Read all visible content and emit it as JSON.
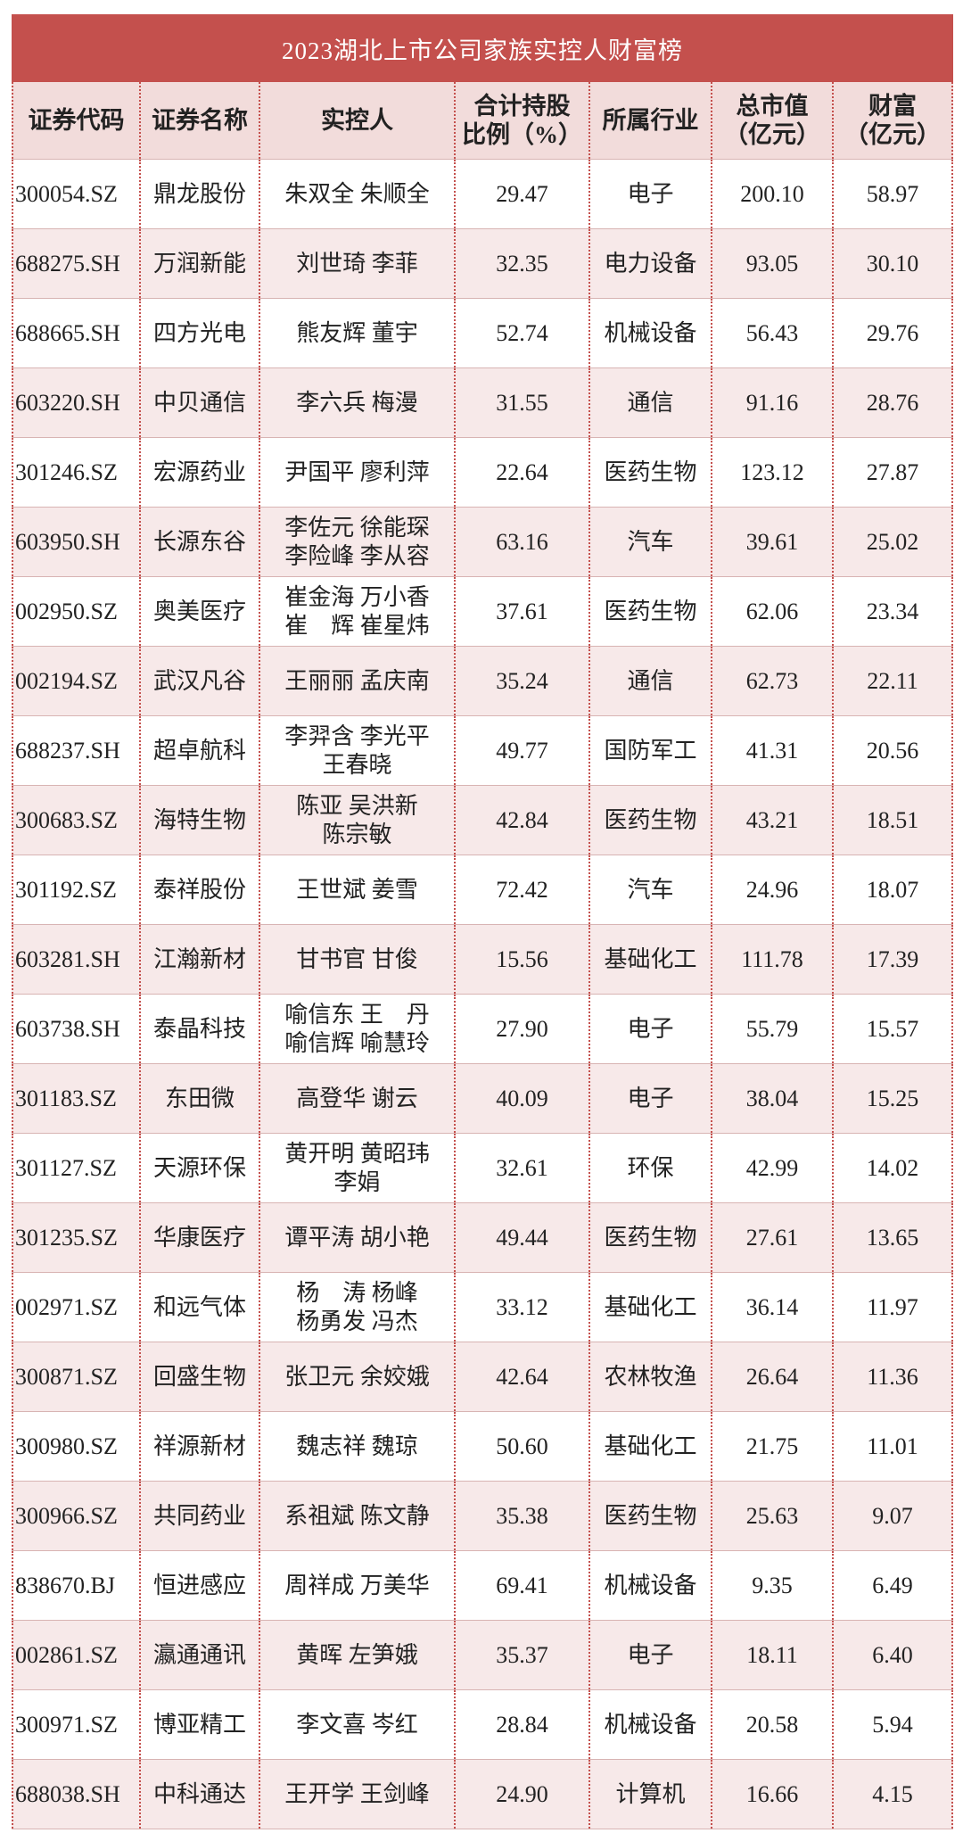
{
  "table": {
    "title": "2023湖北上市公司家族实控人财富榜",
    "header": [
      "证券代码",
      "证券名称",
      "实控人",
      "合计持股\n比例（%）",
      "所属行业",
      "总市值\n（亿元）",
      "财富\n（亿元）"
    ],
    "rows": [
      [
        "300054.SZ",
        "鼎龙股份",
        "朱双全  朱顺全",
        "29.47",
        "电子",
        "200.10",
        "58.97"
      ],
      [
        "688275.SH",
        "万润新能",
        "刘世琦  李菲",
        "32.35",
        "电力设备",
        "93.05",
        "30.10"
      ],
      [
        "688665.SH",
        "四方光电",
        "熊友辉  董宇",
        "52.74",
        "机械设备",
        "56.43",
        "29.76"
      ],
      [
        "603220.SH",
        "中贝通信",
        "李六兵  梅漫",
        "31.55",
        "通信",
        "91.16",
        "28.76"
      ],
      [
        "301246.SZ",
        "宏源药业",
        "尹国平  廖利萍",
        "22.64",
        "医药生物",
        "123.12",
        "27.87"
      ],
      [
        "603950.SH",
        "长源东谷",
        "李佐元 徐能琛\n李险峰 李从容",
        "63.16",
        "汽车",
        "39.61",
        "25.02"
      ],
      [
        "002950.SZ",
        "奥美医疗",
        "崔金海 万小香\n崔　辉 崔星炜",
        "37.61",
        "医药生物",
        "62.06",
        "23.34"
      ],
      [
        "002194.SZ",
        "武汉凡谷",
        "王丽丽  孟庆南",
        "35.24",
        "通信",
        "62.73",
        "22.11"
      ],
      [
        "688237.SH",
        "超卓航科",
        "李羿含 李光平\n王春晓",
        "49.77",
        "国防军工",
        "41.31",
        "20.56"
      ],
      [
        "300683.SZ",
        "海特生物",
        "陈亚  吴洪新\n陈宗敏",
        "42.84",
        "医药生物",
        "43.21",
        "18.51"
      ],
      [
        "301192.SZ",
        "泰祥股份",
        "王世斌  姜雪",
        "72.42",
        "汽车",
        "24.96",
        "18.07"
      ],
      [
        "603281.SH",
        "江瀚新材",
        "甘书官  甘俊",
        "15.56",
        "基础化工",
        "111.78",
        "17.39"
      ],
      [
        "603738.SH",
        "泰晶科技",
        "喻信东 王　丹\n喻信辉 喻慧玲",
        "27.90",
        "电子",
        "55.79",
        "15.57"
      ],
      [
        "301183.SZ",
        "东田微",
        "高登华  谢云",
        "40.09",
        "电子",
        "38.04",
        "15.25"
      ],
      [
        "301127.SZ",
        "天源环保",
        "黄开明 黄昭玮\n李娟",
        "32.61",
        "环保",
        "42.99",
        "14.02"
      ],
      [
        "301235.SZ",
        "华康医疗",
        "谭平涛  胡小艳",
        "49.44",
        "医药生物",
        "27.61",
        "13.65"
      ],
      [
        "002971.SZ",
        "和远气体",
        "杨　涛 杨峰\n杨勇发 冯杰",
        "33.12",
        "基础化工",
        "36.14",
        "11.97"
      ],
      [
        "300871.SZ",
        "回盛生物",
        "张卫元  余姣娥",
        "42.64",
        "农林牧渔",
        "26.64",
        "11.36"
      ],
      [
        "300980.SZ",
        "祥源新材",
        "魏志祥  魏琼",
        "50.60",
        "基础化工",
        "21.75",
        "11.01"
      ],
      [
        "300966.SZ",
        "共同药业",
        "系祖斌  陈文静",
        "35.38",
        "医药生物",
        "25.63",
        "9.07"
      ],
      [
        "838670.BJ",
        "恒进感应",
        "周祥成  万美华",
        "69.41",
        "机械设备",
        "9.35",
        "6.49"
      ],
      [
        "002861.SZ",
        "瀛通通讯",
        "黄晖  左笋娥",
        "35.37",
        "电子",
        "18.11",
        "6.40"
      ],
      [
        "300971.SZ",
        "博亚精工",
        "李文喜  岑红",
        "28.84",
        "机械设备",
        "20.58",
        "5.94"
      ],
      [
        "688038.SH",
        "中科通达",
        "王开学  王剑峰",
        "24.90",
        "计算机",
        "16.66",
        "4.15"
      ]
    ]
  }
}
